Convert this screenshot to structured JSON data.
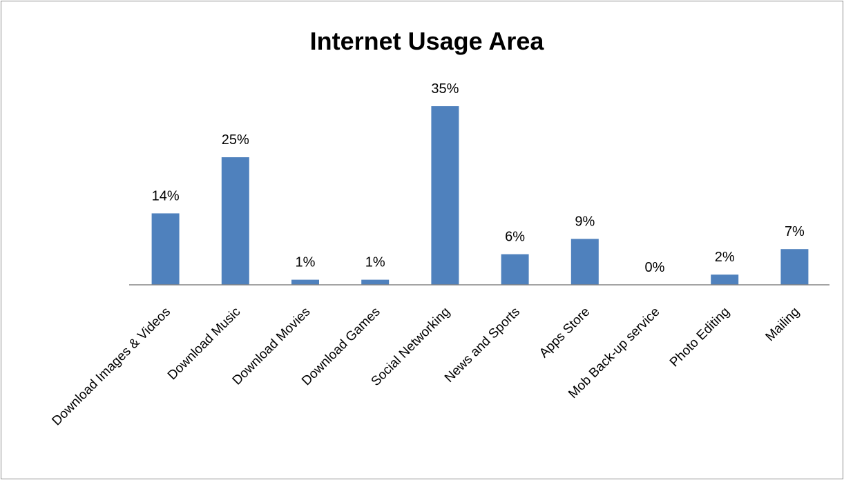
{
  "chart_data": {
    "type": "bar",
    "title": "Internet Usage Area",
    "categories": [
      "Download Images & Videos",
      "Download Music",
      "Download Movies",
      "Download Games",
      "Social Networking",
      "News and Sports",
      "Apps Store",
      "Mob Back-up service",
      "Photo Editing",
      "Mailing"
    ],
    "values": [
      14,
      25,
      1,
      1,
      35,
      6,
      9,
      0,
      2,
      7
    ],
    "value_suffix": "%",
    "ylim": [
      0,
      40
    ],
    "grid": false,
    "legend": "none",
    "bar_color": "#4F81BD",
    "axis_color": "#868686"
  }
}
